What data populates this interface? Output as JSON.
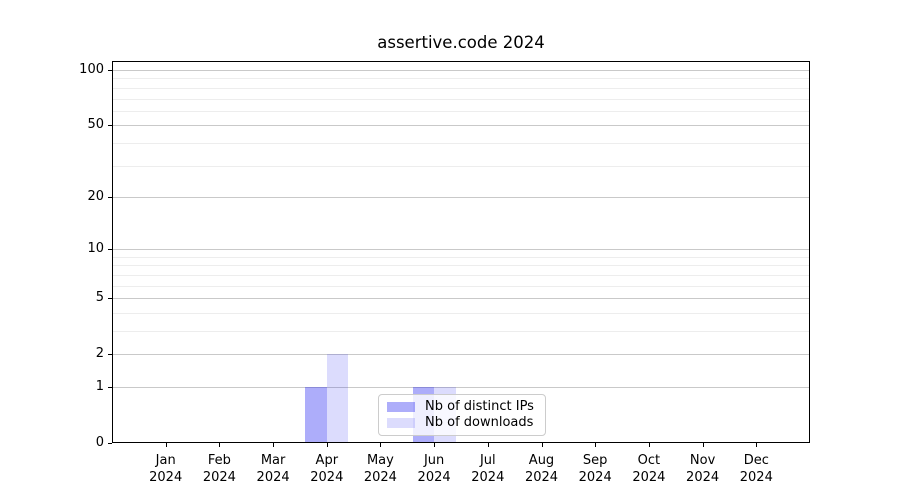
{
  "title": "assertive.code 2024",
  "chart_data": {
    "type": "bar",
    "title": "assertive.code 2024",
    "categories": [
      "Jan",
      "Feb",
      "Mar",
      "Apr",
      "May",
      "Jun",
      "Jul",
      "Aug",
      "Sep",
      "Oct",
      "Nov",
      "Dec"
    ],
    "year_label": "2024",
    "series": [
      {
        "name": "Nb of distinct IPs",
        "color": "rgba(20,20,240,0.35)",
        "values": [
          0,
          0,
          0,
          1,
          0,
          1,
          0,
          0,
          0,
          0,
          0,
          0
        ]
      },
      {
        "name": "Nb of downloads",
        "color": "rgba(20,20,240,0.15)",
        "values": [
          0,
          0,
          0,
          2,
          0,
          1,
          0,
          0,
          0,
          0,
          0,
          0
        ]
      }
    ],
    "yscale": "log1p",
    "ylim": [
      0,
      112
    ],
    "yticks_major": [
      0,
      1,
      2,
      5,
      10,
      20,
      50,
      100
    ],
    "yticks_minor": [
      3,
      4,
      6,
      7,
      8,
      9,
      30,
      40,
      60,
      70,
      80,
      90
    ],
    "grid": true,
    "legend_position": "lower center",
    "axis_color": "#000000",
    "major_grid_color": "#c9c9c9",
    "minor_grid_color": "#ededed"
  }
}
